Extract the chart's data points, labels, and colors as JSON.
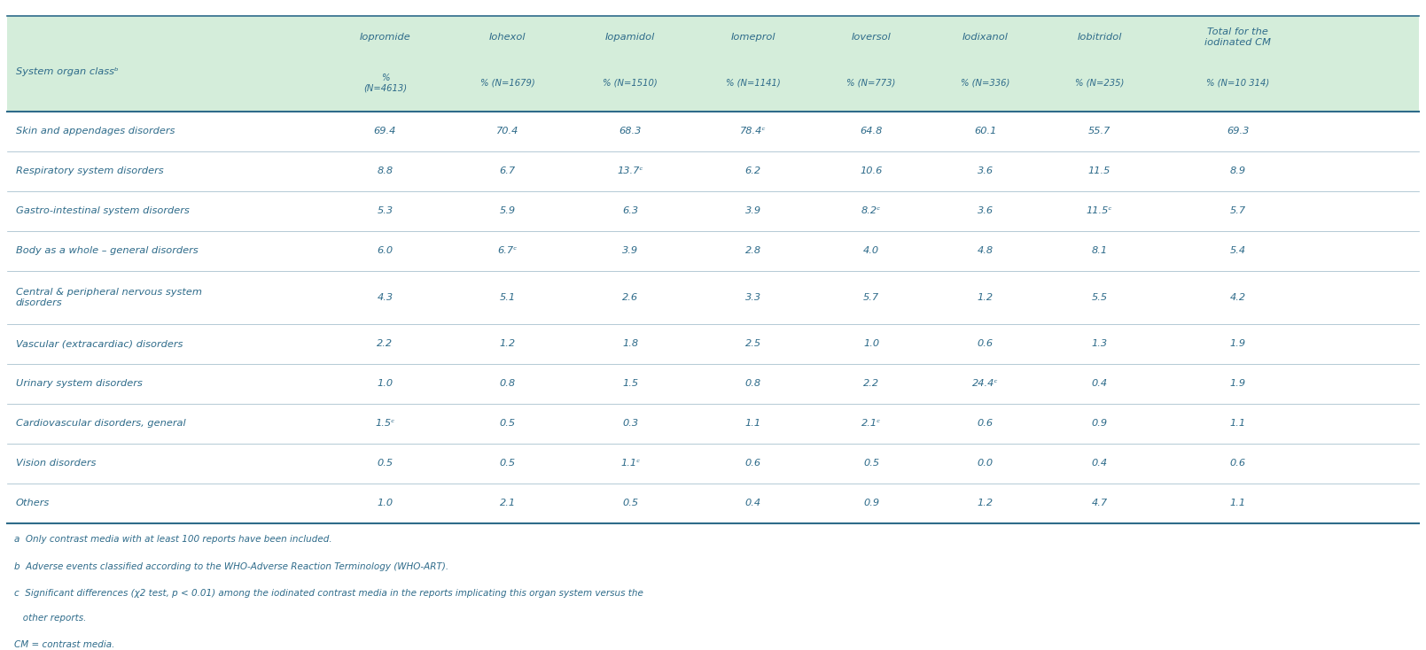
{
  "header_bg_color": "#d4edda",
  "header_text_color": "#2e6b8a",
  "line_color": "#2e6b8a",
  "col_headers": [
    "Iopromide",
    "Iohexol",
    "Iopamidol",
    "Iomeprol",
    "Ioversol",
    "Iodixanol",
    "Iobitridol",
    "Total for the\niodinated CM"
  ],
  "col_subheaders": [
    "%\n(N=4613)",
    "% (N=1679)",
    "% (N=1510)",
    "% (N=1141)",
    "% (N=773)",
    "% (N=336)",
    "% (N=235)",
    "% (N=10 314)"
  ],
  "row_labels": [
    "Skin and appendages disorders",
    "Respiratory system disorders",
    "Gastro-intestinal system disorders",
    "Body as a whole – general disorders",
    "Central & peripheral nervous system\ndisorders",
    "Vascular (extracardiac) disorders",
    "Urinary system disorders",
    "Cardiovascular disorders, general",
    "Vision disorders",
    "Others"
  ],
  "data": [
    [
      "69.4",
      "70.4",
      "68.3",
      "78.4ᶜ",
      "64.8",
      "60.1",
      "55.7",
      "69.3"
    ],
    [
      "8.8",
      "6.7",
      "13.7ᶜ",
      "6.2",
      "10.6",
      "3.6",
      "11.5",
      "8.9"
    ],
    [
      "5.3",
      "5.9",
      "6.3",
      "3.9",
      "8.2ᶜ",
      "3.6",
      "11.5ᶜ",
      "5.7"
    ],
    [
      "6.0",
      "6.7ᶜ",
      "3.9",
      "2.8",
      "4.0",
      "4.8",
      "8.1",
      "5.4"
    ],
    [
      "4.3",
      "5.1",
      "2.6",
      "3.3",
      "5.7",
      "1.2",
      "5.5",
      "4.2"
    ],
    [
      "2.2",
      "1.2",
      "1.8",
      "2.5",
      "1.0",
      "0.6",
      "1.3",
      "1.9"
    ],
    [
      "1.0",
      "0.8",
      "1.5",
      "0.8",
      "2.2",
      "24.4ᶜ",
      "0.4",
      "1.9"
    ],
    [
      "1.5ᶜ",
      "0.5",
      "0.3",
      "1.1",
      "2.1ᶜ",
      "0.6",
      "0.9",
      "1.1"
    ],
    [
      "0.5",
      "0.5",
      "1.1ᶜ",
      "0.6",
      "0.5",
      "0.0",
      "0.4",
      "0.6"
    ],
    [
      "1.0",
      "2.1",
      "0.5",
      "0.4",
      "0.9",
      "1.2",
      "4.7",
      "1.1"
    ]
  ],
  "footnotes": [
    "a  Only contrast media with at least 100 reports have been included.",
    "b  Adverse events classified according to the WHO-Adverse Reaction Terminology (WHO-ART).",
    "c  Significant differences (χ2 test, p < 0.01) among the iodinated contrast media in the reports implicating this organ system versus the other reports.",
    "CM = contrast media."
  ],
  "system_organ_label": "System organ classᵇ"
}
